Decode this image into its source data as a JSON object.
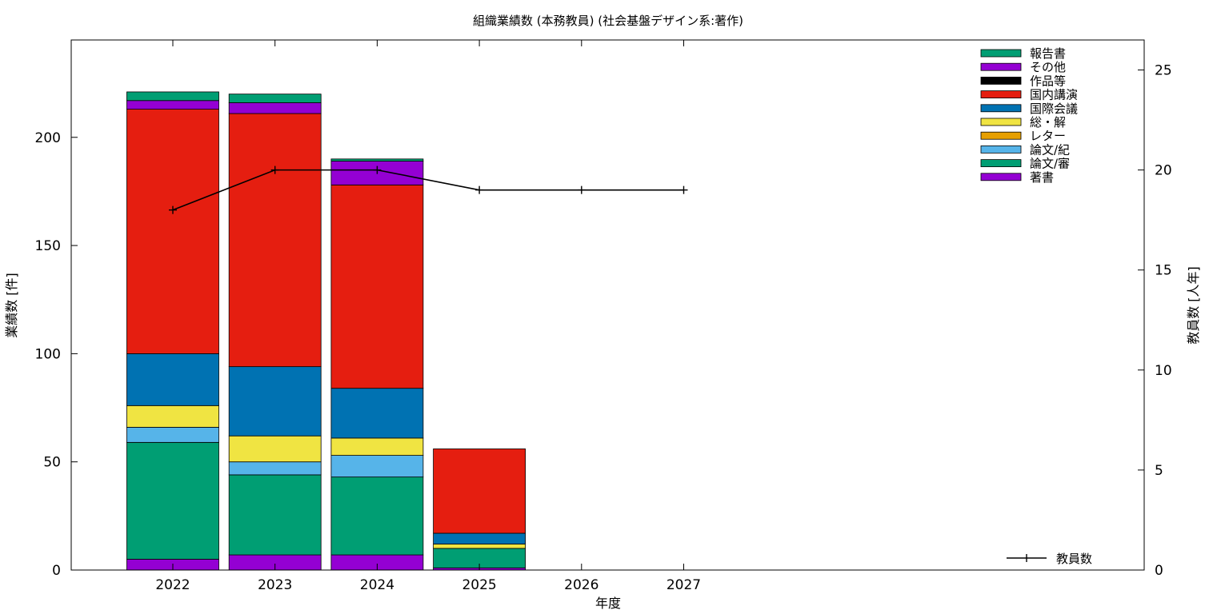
{
  "chart_data": {
    "type": "bar",
    "stacked": true,
    "title": "組織業績数 (本務教員) (社会基盤デザイン系:著作)",
    "xlabel": "年度",
    "ylabel": "業績数 [件]",
    "y2label": "教員数 [人年]",
    "categories": [
      "2022",
      "2023",
      "2024",
      "2025",
      "2026",
      "2027"
    ],
    "ylim": [
      0,
      245
    ],
    "yticks": [
      "0",
      "50",
      "100",
      "150",
      "200"
    ],
    "y2lim": [
      0,
      26.5
    ],
    "y2ticks": [
      "0",
      "5",
      "10",
      "15",
      "20",
      "25"
    ],
    "grid": false,
    "legend_position": "top-right",
    "series": [
      {
        "name": "著書",
        "color": "#9400d3",
        "values": [
          5,
          7,
          7,
          1,
          0,
          0
        ]
      },
      {
        "name": "論文/審",
        "color": "#009e73",
        "values": [
          54,
          37,
          36,
          9,
          0,
          0
        ]
      },
      {
        "name": "論文/紀",
        "color": "#56b4e9",
        "values": [
          7,
          6,
          10,
          0,
          0,
          0
        ]
      },
      {
        "name": "レター",
        "color": "#e69f00",
        "values": [
          0,
          0,
          0,
          0,
          0,
          0
        ]
      },
      {
        "name": "総・解",
        "color": "#f0e442",
        "values": [
          10,
          12,
          8,
          2,
          0,
          0
        ]
      },
      {
        "name": "国際会議",
        "color": "#0072b2",
        "values": [
          24,
          32,
          23,
          5,
          0,
          0
        ]
      },
      {
        "name": "国内講演",
        "color": "#e51e10",
        "values": [
          113,
          117,
          94,
          39,
          0,
          0
        ]
      },
      {
        "name": "作品等",
        "color": "#000000",
        "values": [
          0,
          0,
          0,
          0,
          0,
          0
        ]
      },
      {
        "name": "その他",
        "color": "#9400d3",
        "values": [
          4,
          5,
          11,
          0,
          0,
          0
        ]
      },
      {
        "name": "報告書",
        "color": "#009e73",
        "values": [
          4,
          4,
          1,
          0,
          0,
          0
        ]
      }
    ],
    "line_series": {
      "name": "教員数",
      "axis": "y2",
      "color": "#000000",
      "values": [
        18,
        20,
        20,
        19,
        19,
        19
      ]
    }
  }
}
